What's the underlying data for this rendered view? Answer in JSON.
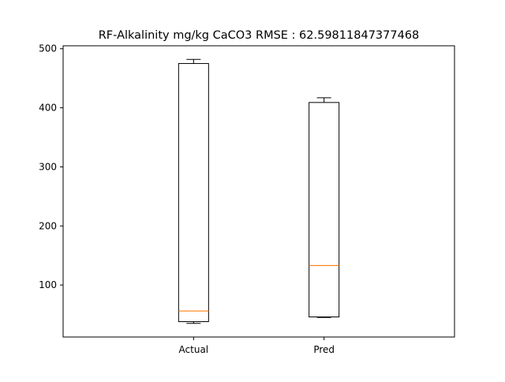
{
  "chart_data": {
    "type": "box",
    "title": "RF-Alkalinity mg/kg CaCO3 RMSE : 62.59811847377468",
    "xlabel": "",
    "ylabel": "",
    "ylim": [
      12,
      505
    ],
    "yticks": [
      100,
      200,
      300,
      400,
      500
    ],
    "grid": false,
    "categories": [
      "Actual",
      "Pred"
    ],
    "boxes": [
      {
        "category": "Actual",
        "whislo": 35,
        "q1": 38,
        "median": 56,
        "q3": 475,
        "whishi": 482
      },
      {
        "category": "Pred",
        "whislo": 45,
        "q1": 46,
        "median": 133,
        "q3": 409,
        "whishi": 417
      }
    ],
    "colors": {
      "box": "#000000",
      "median": "#ff7f0e",
      "background": "#ffffff"
    }
  }
}
